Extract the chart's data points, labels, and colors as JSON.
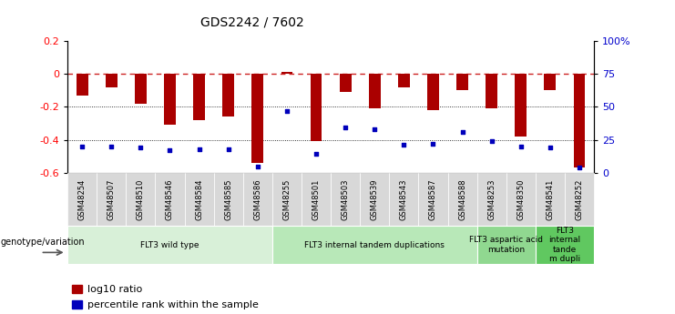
{
  "title": "GDS2242 / 7602",
  "samples": [
    "GSM48254",
    "GSM48507",
    "GSM48510",
    "GSM48546",
    "GSM48584",
    "GSM48585",
    "GSM48586",
    "GSM48255",
    "GSM48501",
    "GSM48503",
    "GSM48539",
    "GSM48543",
    "GSM48587",
    "GSM48588",
    "GSM48253",
    "GSM48350",
    "GSM48541",
    "GSM48252"
  ],
  "log10_ratio": [
    -0.13,
    -0.08,
    -0.18,
    -0.31,
    -0.28,
    -0.26,
    -0.54,
    0.01,
    -0.41,
    -0.11,
    -0.21,
    -0.08,
    -0.22,
    -0.1,
    -0.21,
    -0.38,
    -0.1,
    -0.57
  ],
  "percentile_rank": [
    20,
    20,
    19,
    17,
    18,
    18,
    5,
    47,
    14,
    34,
    33,
    21,
    22,
    31,
    24,
    20,
    19,
    4
  ],
  "groups": [
    {
      "label": "FLT3 wild type",
      "start": 0,
      "end": 6,
      "color": "#d8f0d8"
    },
    {
      "label": "FLT3 internal tandem duplications",
      "start": 7,
      "end": 13,
      "color": "#b8e8b8"
    },
    {
      "label": "FLT3 aspartic acid\nmutation",
      "start": 14,
      "end": 15,
      "color": "#90d890"
    },
    {
      "label": "FLT3\ninternal\ntande\nm dupli",
      "start": 16,
      "end": 17,
      "color": "#60c860"
    }
  ],
  "bar_color": "#aa0000",
  "dot_color": "#0000bb",
  "ref_line_color": "#cc2222",
  "ylim_left": [
    -0.6,
    0.2
  ],
  "ylim_right": [
    0,
    100
  ],
  "yticks_left": [
    -0.6,
    -0.4,
    -0.2,
    0.0,
    0.2
  ],
  "yticks_right": [
    0,
    25,
    50,
    75,
    100
  ],
  "ytick_right_labels": [
    "0",
    "25",
    "50",
    "75",
    "100%"
  ],
  "tick_cell_color": "#d8d8d8"
}
